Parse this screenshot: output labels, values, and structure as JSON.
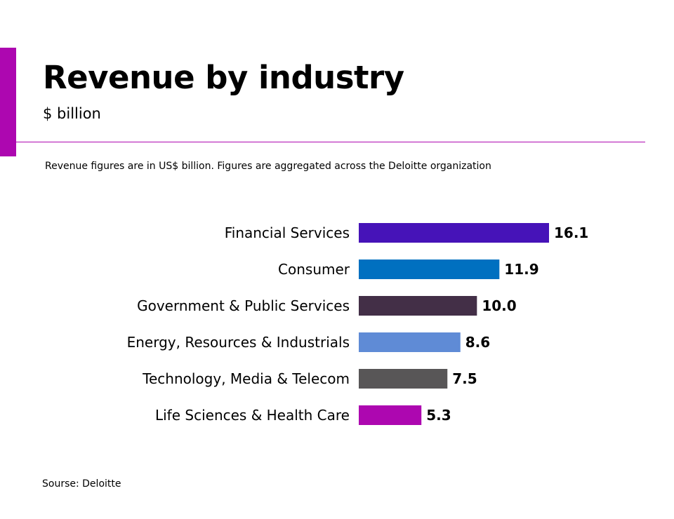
{
  "header": {
    "title": "Revenue by industry",
    "subtitle": "$ billion",
    "note": "Revenue figures are in US$ billion. Figures are aggregated across the Deloitte organization"
  },
  "footer": {
    "source": "Sourse: Deloitte"
  },
  "colors": {
    "accent": "#ad07b0"
  },
  "chart_data": {
    "type": "bar",
    "orientation": "horizontal",
    "title": "Revenue by industry",
    "subtitle": "$ billion",
    "xlabel": "",
    "ylabel": "",
    "categories": [
      "Financial Services",
      "Consumer",
      "Government & Public Services",
      "Energy, Resources & Industrials",
      "Technology, Media & Telecom",
      "Life Sciences & Health Care"
    ],
    "values": [
      16.1,
      11.9,
      10.0,
      8.6,
      7.5,
      5.3
    ],
    "value_labels": [
      "16.1",
      "11.9",
      "10.0",
      "8.6",
      "7.5",
      "5.3"
    ],
    "colors": [
      "#4613b8",
      "#0070c0",
      "#432f47",
      "#5f8bd6",
      "#585657",
      "#ad07b0"
    ],
    "xlim": [
      0,
      16.1
    ],
    "grid": false,
    "legend": "none"
  }
}
